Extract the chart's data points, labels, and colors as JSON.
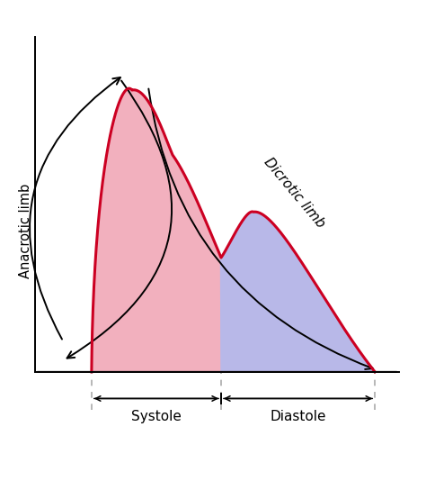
{
  "background_color": "#ffffff",
  "systole_color": "#f2b0be",
  "diastole_color": "#b8b8e8",
  "line_color": "#cc0022",
  "arrow_color": "#111111",
  "dashed_color": "#aaaaaa",
  "anacrotic_label": "Anacrotic limb",
  "dicrotic_label": "Dicrotic limb",
  "systole_label": "Systole",
  "diastole_label": "Diastole",
  "figsize": [
    4.74,
    5.34
  ],
  "dpi": 100
}
